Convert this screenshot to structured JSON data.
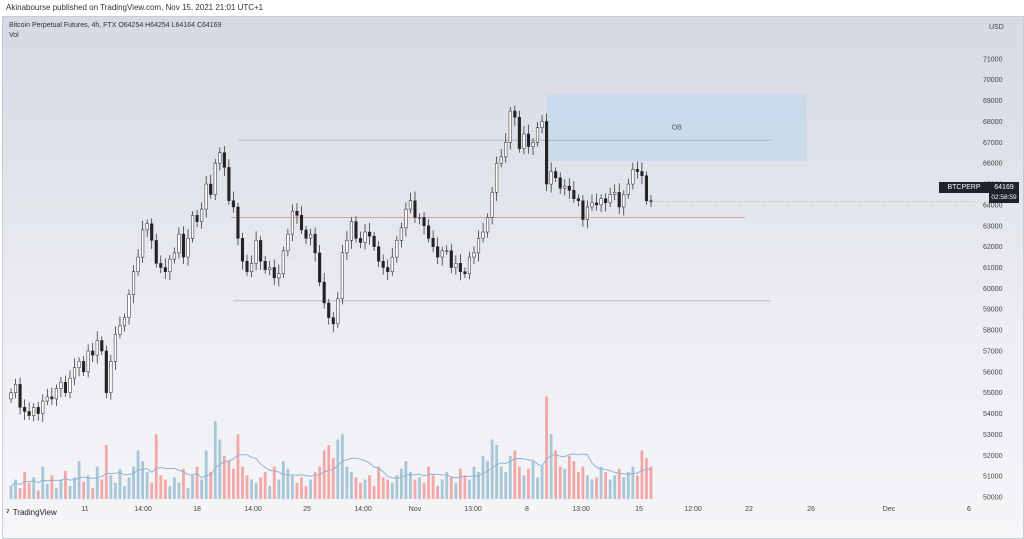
{
  "publisher": "Akinabourse published on TradingView.com, Nov 15, 2021 21:01 UTC+1",
  "legend": {
    "symbol_line": "Bitcoin Perpetual Futures, 4h, FTX  O64254  H64254  L64164  C64169",
    "vol_label": "Vol"
  },
  "price_tag": {
    "label": "BTCPERP",
    "value": "64169",
    "countdown": "02:58:59"
  },
  "brand": "TradingView",
  "colors": {
    "up": "#222222",
    "down": "#222222",
    "vol_up": "#a8c6d6",
    "vol_down": "#f4a7a7",
    "vol_ma": "#8fb4d3",
    "ob_fill": "#c7d9ec",
    "level_red": "#e89090",
    "level_grey": "#a7a9b5"
  },
  "chart_data": {
    "type": "candlestick",
    "currency": "USD",
    "timeframe": "4h",
    "y_ticks": [
      50000,
      51000,
      52000,
      53000,
      54000,
      55000,
      56000,
      57000,
      58000,
      59000,
      60000,
      61000,
      62000,
      63000,
      64000,
      65000,
      66000,
      67000,
      68000,
      69000,
      70000,
      71000
    ],
    "ylim": [
      50000,
      72000
    ],
    "x_ticks": [
      "11",
      "14:00",
      "18",
      "14:00",
      "25",
      "14:00",
      "Nov",
      "13:00",
      "8",
      "13:00",
      "15",
      "12:00",
      "22",
      "26",
      "Dec",
      "6"
    ],
    "closes": [
      55000,
      55400,
      54300,
      54100,
      53900,
      54300,
      54000,
      54600,
      54800,
      54700,
      55200,
      55500,
      55000,
      55700,
      56200,
      56500,
      56000,
      57000,
      56800,
      57500,
      57000,
      55000,
      56500,
      57800,
      58200,
      58600,
      59700,
      60800,
      61500,
      62800,
      63100,
      62300,
      61200,
      61000,
      60800,
      61400,
      61700,
      62600,
      61500,
      62400,
      63500,
      63200,
      63800,
      65000,
      64500,
      66000,
      66500,
      65800,
      64200,
      63900,
      62400,
      61300,
      60800,
      61200,
      62300,
      61300,
      60900,
      61000,
      60500,
      60700,
      61800,
      62600,
      63700,
      63500,
      62800,
      62400,
      62600,
      61700,
      60300,
      59300,
      58600,
      58300,
      59500,
      61700,
      62300,
      63200,
      62400,
      62200,
      62700,
      62500,
      62000,
      61300,
      61000,
      60800,
      61500,
      62300,
      62900,
      63800,
      64200,
      63400,
      63400,
      63000,
      62400,
      62000,
      61500,
      61800,
      61800,
      61000,
      61200,
      60800,
      60700,
      61500,
      61700,
      62400,
      62700,
      63400,
      64600,
      66000,
      66300,
      67000,
      68500,
      68200,
      66700,
      67400,
      66800,
      67000,
      67700,
      68000,
      65000,
      65600,
      65300,
      64800,
      64900,
      64700,
      64300,
      64200,
      63300,
      63900,
      64100,
      64000,
      64300,
      64100,
      64500,
      64600,
      63900,
      64500,
      65000,
      65700,
      65600,
      65400,
      64200,
      64169
    ],
    "volume_levels": [
      0.12,
      0.18,
      0.1,
      0.25,
      0.15,
      0.2,
      0.08,
      0.3,
      0.14,
      0.22,
      0.1,
      0.18,
      0.26,
      0.12,
      0.2,
      0.35,
      0.16,
      0.22,
      0.1,
      0.3,
      0.18,
      0.5,
      0.22,
      0.15,
      0.28,
      0.12,
      0.2,
      0.3,
      0.45,
      0.35,
      0.25,
      0.15,
      0.6,
      0.22,
      0.18,
      0.12,
      0.2,
      0.15,
      0.28,
      0.1,
      0.22,
      0.3,
      0.18,
      0.45,
      0.25,
      0.72,
      0.55,
      0.4,
      0.35,
      0.28,
      0.6,
      0.3,
      0.22,
      0.18,
      0.15,
      0.2,
      0.25,
      0.12,
      0.3,
      0.18,
      0.35,
      0.28,
      0.22,
      0.15,
      0.2,
      0.12,
      0.18,
      0.25,
      0.3,
      0.45,
      0.5,
      0.38,
      0.55,
      0.6,
      0.3,
      0.25,
      0.2,
      0.15,
      0.18,
      0.22,
      0.12,
      0.3,
      0.2,
      0.18,
      0.15,
      0.22,
      0.28,
      0.35,
      0.25,
      0.18,
      0.2,
      0.15,
      0.3,
      0.22,
      0.12,
      0.18,
      0.25,
      0.2,
      0.15,
      0.28,
      0.22,
      0.18,
      0.3,
      0.25,
      0.4,
      0.35,
      0.55,
      0.5,
      0.3,
      0.25,
      0.4,
      0.45,
      0.3,
      0.22,
      0.28,
      0.35,
      0.2,
      0.3,
      0.95,
      0.6,
      0.45,
      0.3,
      0.28,
      0.4,
      0.35,
      0.25,
      0.3,
      0.22,
      0.18,
      0.2,
      0.3,
      0.25,
      0.18,
      0.22,
      0.28,
      0.2,
      0.25,
      0.3,
      0.22,
      0.45,
      0.38,
      0.3
    ],
    "annotations": {
      "ob_label": "OB",
      "ob_box": {
        "y_low": 66100,
        "y_high": 69300
      },
      "high_level": 67100,
      "mid_level": 63400,
      "low_level": 59400
    }
  }
}
